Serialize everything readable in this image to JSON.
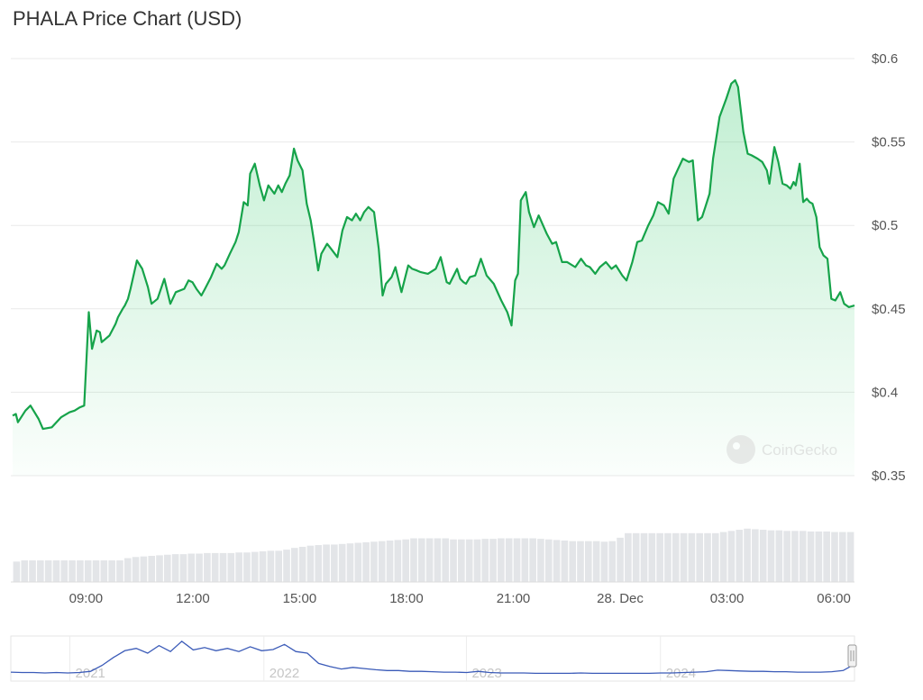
{
  "chart_data": {
    "type": "area",
    "title": "PHALA Price Chart (USD)",
    "currency": "USD",
    "ylim": [
      0.35,
      0.6
    ],
    "yticks": [
      "$0.6",
      "$0.55",
      "$0.5",
      "$0.45",
      "$0.4",
      "$0.35"
    ],
    "ytick_values": [
      0.6,
      0.55,
      0.5,
      0.45,
      0.4,
      0.35
    ],
    "xticks": [
      "09:00",
      "12:00",
      "15:00",
      "18:00",
      "21:00",
      "28. Dec",
      "03:00",
      "06:00"
    ],
    "xtick_hours": [
      9,
      12,
      15,
      18,
      21,
      24,
      27,
      30
    ],
    "xlim_hours": [
      6.94,
      30.58
    ],
    "grid": true,
    "legend": "none",
    "colors": {
      "line": "#16a34a",
      "fill": "#22c55e",
      "volume": "#e3e5e8",
      "navigator": "#3b5bb8"
    },
    "price_series": {
      "name": "Price",
      "x_hours": [
        6.94,
        7.03,
        7.09,
        7.3,
        7.44,
        7.67,
        7.79,
        8.04,
        8.3,
        8.54,
        8.68,
        8.83,
        8.95,
        9.08,
        9.17,
        9.3,
        9.39,
        9.44,
        9.66,
        9.83,
        9.9,
        10.03,
        10.09,
        10.18,
        10.25,
        10.43,
        10.58,
        10.74,
        10.84,
        11.01,
        11.2,
        11.37,
        11.52,
        11.76,
        11.88,
        11.99,
        12.1,
        12.24,
        12.34,
        12.51,
        12.67,
        12.81,
        12.89,
        13.04,
        13.2,
        13.29,
        13.43,
        13.54,
        13.61,
        13.74,
        13.88,
        14.0,
        14.12,
        14.29,
        14.4,
        14.5,
        14.6,
        14.72,
        14.84,
        14.94,
        15.08,
        15.2,
        15.31,
        15.4,
        15.52,
        15.61,
        15.77,
        15.88,
        16.06,
        16.2,
        16.33,
        16.47,
        16.58,
        16.7,
        16.81,
        16.93,
        17.09,
        17.22,
        17.33,
        17.42,
        17.58,
        17.69,
        17.86,
        18.05,
        18.16,
        18.29,
        18.4,
        18.6,
        18.82,
        18.96,
        19.13,
        19.21,
        19.42,
        19.51,
        19.6,
        19.67,
        19.78,
        19.93,
        20.09,
        20.25,
        20.45,
        20.66,
        20.83,
        20.95,
        21.05,
        21.13,
        21.21,
        21.35,
        21.44,
        21.58,
        21.71,
        21.94,
        22.09,
        22.2,
        22.37,
        22.51,
        22.74,
        22.9,
        23.04,
        23.15,
        23.3,
        23.43,
        23.6,
        23.76,
        23.88,
        24.06,
        24.18,
        24.34,
        24.48,
        24.61,
        24.79,
        24.93,
        25.06,
        25.23,
        25.36,
        25.5,
        25.63,
        25.76,
        25.93,
        26.04,
        26.18,
        26.3,
        26.39,
        26.51,
        26.61,
        26.79,
        26.98,
        27.12,
        27.23,
        27.31,
        27.46,
        27.58,
        27.69,
        27.86,
        27.99,
        28.12,
        28.19,
        28.33,
        28.44,
        28.56,
        28.68,
        28.78,
        28.87,
        28.93,
        29.04,
        29.14,
        29.24,
        29.32,
        29.4,
        29.51,
        29.6,
        29.71,
        29.82,
        29.93,
        30.04,
        30.18,
        30.29,
        30.42,
        30.58
      ],
      "values": [
        0.386,
        0.387,
        0.382,
        0.389,
        0.392,
        0.384,
        0.378,
        0.379,
        0.385,
        0.388,
        0.389,
        0.391,
        0.392,
        0.448,
        0.426,
        0.437,
        0.436,
        0.43,
        0.434,
        0.441,
        0.445,
        0.45,
        0.452,
        0.456,
        0.462,
        0.479,
        0.474,
        0.463,
        0.453,
        0.456,
        0.468,
        0.453,
        0.46,
        0.462,
        0.467,
        0.466,
        0.462,
        0.458,
        0.462,
        0.469,
        0.477,
        0.474,
        0.476,
        0.483,
        0.49,
        0.496,
        0.514,
        0.512,
        0.531,
        0.537,
        0.524,
        0.515,
        0.524,
        0.519,
        0.524,
        0.52,
        0.525,
        0.53,
        0.546,
        0.539,
        0.533,
        0.513,
        0.503,
        0.491,
        0.473,
        0.483,
        0.489,
        0.486,
        0.481,
        0.497,
        0.505,
        0.503,
        0.507,
        0.503,
        0.508,
        0.511,
        0.508,
        0.486,
        0.458,
        0.465,
        0.469,
        0.475,
        0.46,
        0.476,
        0.474,
        0.473,
        0.472,
        0.471,
        0.474,
        0.481,
        0.466,
        0.465,
        0.474,
        0.468,
        0.466,
        0.465,
        0.469,
        0.47,
        0.48,
        0.47,
        0.465,
        0.455,
        0.448,
        0.44,
        0.467,
        0.471,
        0.515,
        0.52,
        0.508,
        0.499,
        0.506,
        0.495,
        0.489,
        0.49,
        0.478,
        0.478,
        0.475,
        0.48,
        0.476,
        0.475,
        0.471,
        0.475,
        0.478,
        0.474,
        0.476,
        0.47,
        0.467,
        0.478,
        0.49,
        0.491,
        0.5,
        0.506,
        0.514,
        0.512,
        0.507,
        0.528,
        0.534,
        0.54,
        0.538,
        0.539,
        0.503,
        0.505,
        0.511,
        0.519,
        0.54,
        0.565,
        0.576,
        0.585,
        0.587,
        0.583,
        0.556,
        0.543,
        0.542,
        0.54,
        0.538,
        0.533,
        0.525,
        0.547,
        0.538,
        0.525,
        0.524,
        0.522,
        0.526,
        0.524,
        0.537,
        0.514,
        0.516,
        0.514,
        0.513,
        0.505,
        0.487,
        0.482,
        0.48,
        0.456,
        0.455,
        0.46,
        0.453,
        0.451,
        0.452
      ]
    },
    "volume_series": {
      "name": "Volume",
      "relative_values": [
        0.36,
        0.38,
        0.38,
        0.38,
        0.38,
        0.38,
        0.38,
        0.38,
        0.38,
        0.38,
        0.38,
        0.38,
        0.38,
        0.38,
        0.42,
        0.44,
        0.45,
        0.46,
        0.47,
        0.48,
        0.49,
        0.49,
        0.5,
        0.5,
        0.51,
        0.51,
        0.51,
        0.51,
        0.52,
        0.52,
        0.53,
        0.54,
        0.55,
        0.55,
        0.57,
        0.6,
        0.62,
        0.64,
        0.65,
        0.66,
        0.66,
        0.67,
        0.68,
        0.69,
        0.7,
        0.71,
        0.72,
        0.73,
        0.74,
        0.75,
        0.77,
        0.77,
        0.77,
        0.77,
        0.77,
        0.75,
        0.75,
        0.75,
        0.75,
        0.76,
        0.76,
        0.77,
        0.77,
        0.77,
        0.77,
        0.77,
        0.76,
        0.75,
        0.74,
        0.73,
        0.72,
        0.72,
        0.72,
        0.72,
        0.71,
        0.72,
        0.78,
        0.86,
        0.86,
        0.86,
        0.86,
        0.86,
        0.86,
        0.86,
        0.86,
        0.86,
        0.86,
        0.86,
        0.86,
        0.88,
        0.9,
        0.92,
        0.94,
        0.93,
        0.92,
        0.91,
        0.91,
        0.9,
        0.9,
        0.9,
        0.89,
        0.89,
        0.89,
        0.88,
        0.88,
        0.88
      ]
    },
    "navigator": {
      "labels": [
        "2021",
        "2022",
        "2023",
        "2024"
      ],
      "label_fractions": [
        0.07,
        0.3,
        0.54,
        0.77
      ],
      "series": [
        0.18,
        0.17,
        0.17,
        0.16,
        0.17,
        0.16,
        0.17,
        0.2,
        0.35,
        0.55,
        0.72,
        0.78,
        0.66,
        0.85,
        0.7,
        0.96,
        0.74,
        0.8,
        0.72,
        0.78,
        0.7,
        0.82,
        0.72,
        0.75,
        0.88,
        0.7,
        0.66,
        0.4,
        0.32,
        0.26,
        0.3,
        0.27,
        0.24,
        0.22,
        0.22,
        0.2,
        0.2,
        0.19,
        0.18,
        0.18,
        0.17,
        0.2,
        0.17,
        0.16,
        0.16,
        0.16,
        0.15,
        0.15,
        0.15,
        0.15,
        0.16,
        0.15,
        0.15,
        0.15,
        0.15,
        0.15,
        0.15,
        0.16,
        0.16,
        0.17,
        0.18,
        0.19,
        0.23,
        0.22,
        0.21,
        0.2,
        0.2,
        0.19,
        0.19,
        0.18,
        0.18,
        0.18,
        0.19,
        0.22,
        0.38
      ]
    },
    "watermark": "CoinGecko"
  }
}
